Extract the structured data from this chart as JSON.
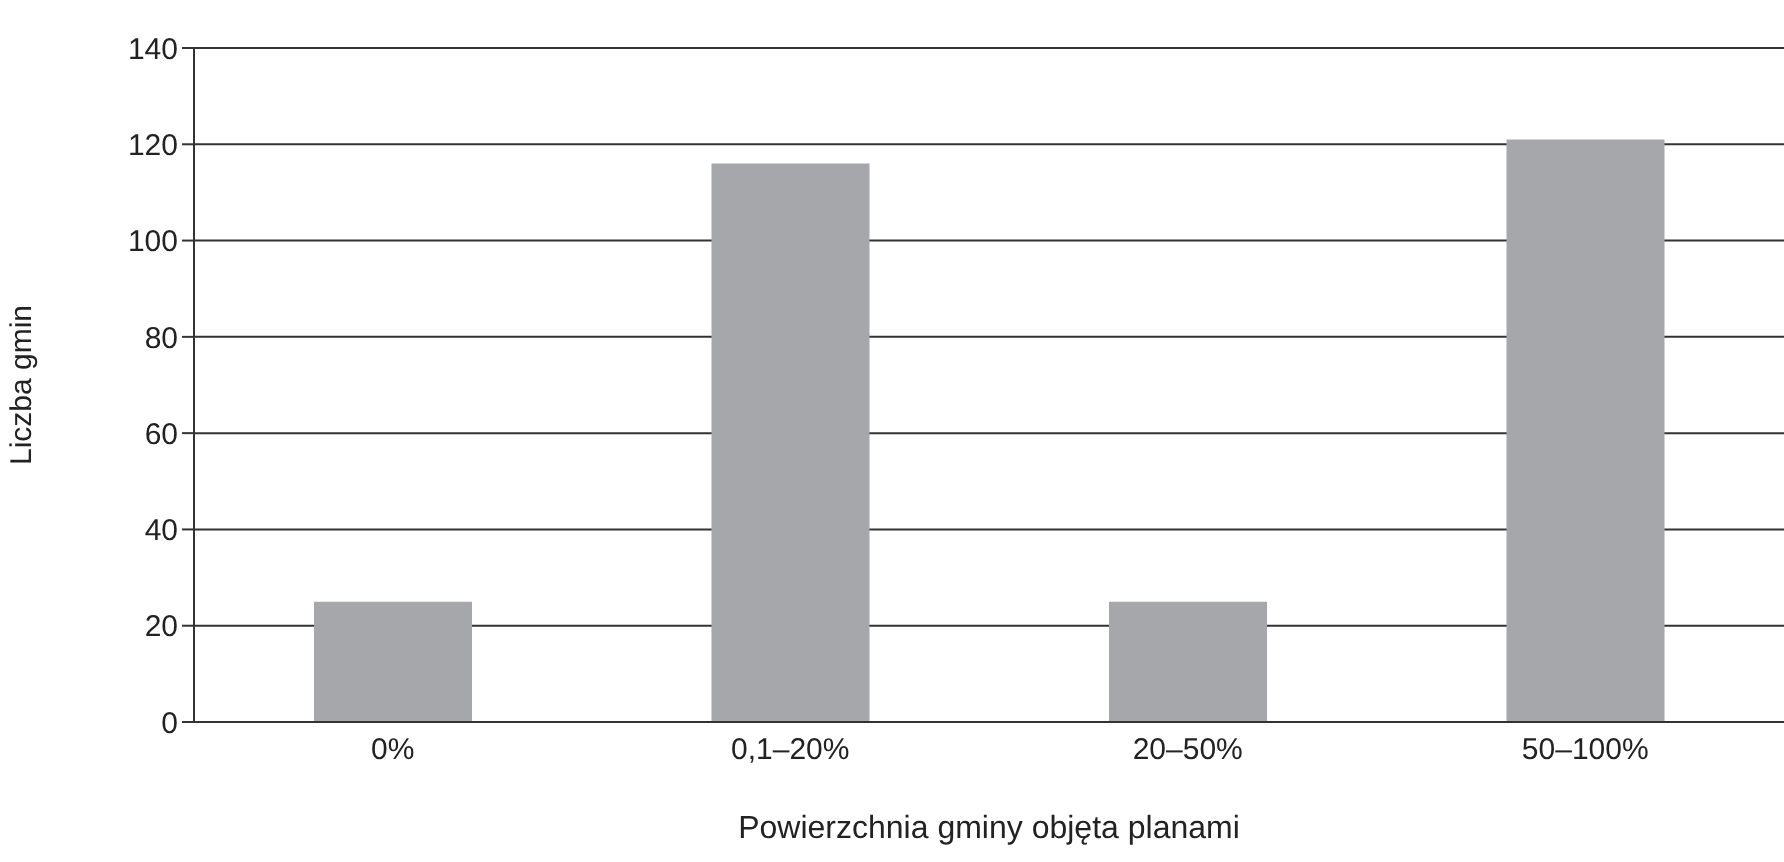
{
  "chart_data": {
    "type": "bar",
    "xlabel": "Powierzchnia gminy objęta planami",
    "ylabel": "Liczba gmin",
    "categories": [
      "0%",
      "0,1–20%",
      "20–50%",
      "50–100%"
    ],
    "values": [
      25,
      116,
      25,
      121
    ],
    "color": "#a6a7ab",
    "ylim": [
      0,
      140
    ],
    "yticks": [
      0,
      20,
      40,
      60,
      80,
      100,
      120,
      140
    ],
    "grid": "y",
    "legend": false
  }
}
